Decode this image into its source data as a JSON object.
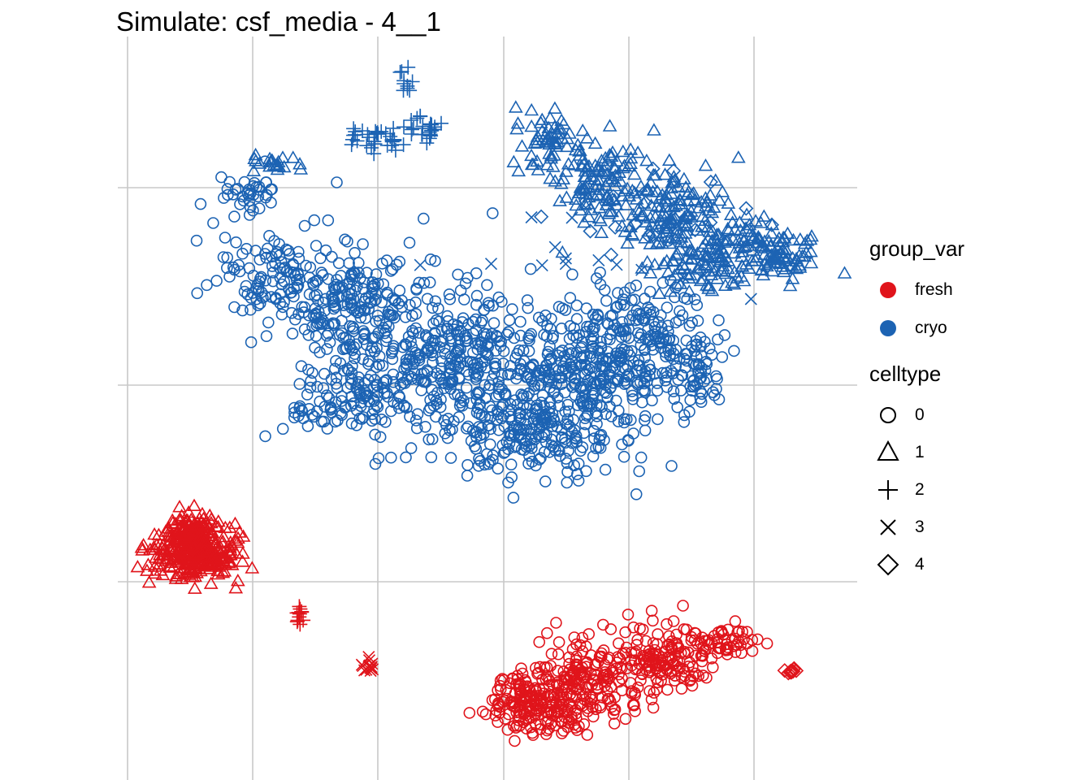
{
  "chart_data": {
    "type": "scatter",
    "title": "Simulate: csf_media - 4__1",
    "xlabel": "",
    "ylabel": "",
    "grid": true,
    "axes_ticks_visible": false,
    "legend_position": "right",
    "colors": {
      "fresh": "#e0141b",
      "cryo": "#1c63b3"
    },
    "legend": {
      "color_title": "group_var",
      "color_entries": [
        "fresh",
        "cryo"
      ],
      "shape_title": "celltype",
      "shape_entries": [
        {
          "label": "0",
          "shape": "circle"
        },
        {
          "label": "1",
          "shape": "triangle"
        },
        {
          "label": "2",
          "shape": "plus"
        },
        {
          "label": "3",
          "shape": "cross"
        },
        {
          "label": "4",
          "shape": "diamond"
        }
      ]
    },
    "clusters": [
      {
        "group": "cryo",
        "celltype": "0",
        "description": "large crescent cluster",
        "n_points": 1500
      },
      {
        "group": "cryo",
        "celltype": "1",
        "description": "upper-right arm of crescent",
        "n_points": 520
      },
      {
        "group": "cryo",
        "celltype": "2",
        "description": "small upper cluster",
        "n_points": 70
      },
      {
        "group": "cryo",
        "celltype": "3",
        "description": "scattered within crescent",
        "n_points": 16
      },
      {
        "group": "cryo",
        "celltype": "4",
        "description": "scattered within crescent",
        "n_points": 24
      },
      {
        "group": "fresh",
        "celltype": "1",
        "description": "lower-left dense cluster",
        "n_points": 380
      },
      {
        "group": "fresh",
        "celltype": "2",
        "description": "small cluster",
        "n_points": 12
      },
      {
        "group": "fresh",
        "celltype": "3",
        "description": "small cluster",
        "n_points": 14
      },
      {
        "group": "fresh",
        "celltype": "0",
        "description": "lower-right elongated cluster",
        "n_points": 560
      },
      {
        "group": "fresh",
        "celltype": "4",
        "description": "tiny far-right cluster",
        "n_points": 14
      }
    ]
  }
}
